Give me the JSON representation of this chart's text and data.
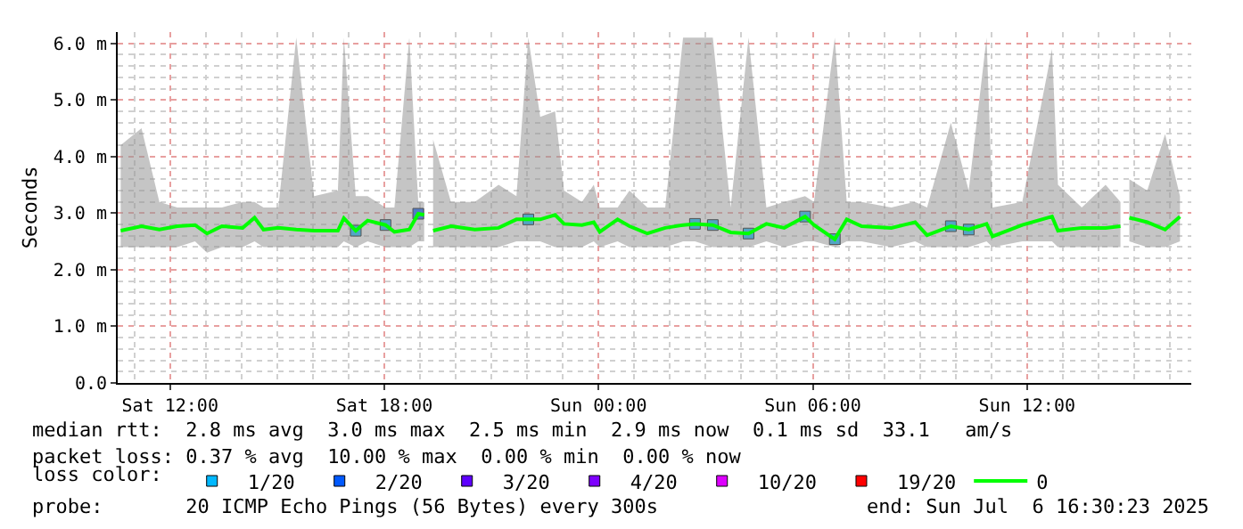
{
  "chart_data": {
    "type": "line",
    "ylabel": "Seconds",
    "legend_title": "loss color:",
    "legend": "bottom",
    "grid": true,
    "marker": "none",
    "line_style": "solid",
    "xlim": [
      "2025-07-05T10:32",
      "2025-07-06T16:36"
    ],
    "xticks": [
      {
        "value": "2025-07-05T12:00",
        "label": "Sat 12:00"
      },
      {
        "value": "2025-07-05T18:00",
        "label": "Sat 18:00"
      },
      {
        "value": "2025-07-06T00:00",
        "label": "Sun 00:00"
      },
      {
        "value": "2025-07-06T06:00",
        "label": "Sun 06:00"
      },
      {
        "value": "2025-07-06T12:00",
        "label": "Sun 12:00"
      }
    ],
    "ylim": [
      0,
      6.2
    ],
    "yticks": [
      {
        "value": 0,
        "label": "0.0"
      },
      {
        "value": 1,
        "label": "1.0 m"
      },
      {
        "value": 2,
        "label": "2.0 m"
      },
      {
        "value": 3,
        "label": "3.0 m"
      },
      {
        "value": 4,
        "label": "4.0 m"
      },
      {
        "value": 5,
        "label": "5.0 m"
      },
      {
        "value": 6,
        "label": "6.0 m"
      }
    ],
    "annotations": [
      "median rtt:  2.8 ms avg  3.0 ms max  2.5 ms min  2.9 ms now  0.1 ms sd  33.1   am/s",
      "packet loss: 0.37 % avg  10.00 % max  0.00 % min  0.00 % now",
      "probe:       20 ICMP Echo Pings (56 Bytes) every 300s",
      "end: Sun Jul  6 16:30:23 2025"
    ],
    "series": [
      {
        "name": "0",
        "color": "#00ff00",
        "x": [
          "2025-07-05T10:37",
          "2025-07-05T11:12",
          "2025-07-05T11:42",
          "2025-07-05T12:12",
          "2025-07-05T12:42",
          "2025-07-05T13:02",
          "2025-07-05T13:27",
          "2025-07-05T14:02",
          "2025-07-05T14:22",
          "2025-07-05T14:37",
          "2025-07-05T15:02",
          "2025-07-05T15:32",
          "2025-07-05T16:02",
          "2025-07-05T16:42",
          "2025-07-05T16:52",
          "2025-07-05T17:12",
          "2025-07-05T17:32",
          "2025-07-05T18:02",
          "2025-07-05T18:17",
          "2025-07-05T18:42",
          "2025-07-05T18:57",
          "2025-07-05T19:07",
          "2025-07-05T19:15",
          "2025-07-05T19:22",
          "2025-07-05T19:52",
          "2025-07-05T20:32",
          "2025-07-05T21:12",
          "2025-07-05T21:42",
          "2025-07-05T22:02",
          "2025-07-05T22:22",
          "2025-07-05T22:47",
          "2025-07-05T23:02",
          "2025-07-05T23:32",
          "2025-07-05T23:52",
          "2025-07-06T00:02",
          "2025-07-06T00:32",
          "2025-07-06T00:52",
          "2025-07-06T01:22",
          "2025-07-06T01:52",
          "2025-07-06T02:22",
          "2025-07-06T02:42",
          "2025-07-06T03:12",
          "2025-07-06T03:42",
          "2025-07-06T04:12",
          "2025-07-06T04:42",
          "2025-07-06T05:12",
          "2025-07-06T05:47",
          "2025-07-06T06:02",
          "2025-07-06T06:37",
          "2025-07-06T06:57",
          "2025-07-06T07:22",
          "2025-07-06T08:12",
          "2025-07-06T08:52",
          "2025-07-06T09:12",
          "2025-07-06T09:52",
          "2025-07-06T10:22",
          "2025-07-06T10:52",
          "2025-07-06T11:02",
          "2025-07-06T11:52",
          "2025-07-06T12:42",
          "2025-07-06T12:52",
          "2025-07-06T13:32",
          "2025-07-06T14:12",
          "2025-07-06T14:37",
          "2025-07-06T14:45",
          "2025-07-06T14:52",
          "2025-07-06T15:22",
          "2025-07-06T15:52",
          "2025-07-06T16:17"
        ],
        "values": [
          2.69,
          2.77,
          2.71,
          2.77,
          2.79,
          2.64,
          2.77,
          2.74,
          2.92,
          2.71,
          2.74,
          2.71,
          2.69,
          2.69,
          2.91,
          2.69,
          2.87,
          2.79,
          2.67,
          2.71,
          2.99,
          2.97,
          null,
          2.69,
          2.77,
          2.71,
          2.74,
          2.89,
          2.89,
          2.89,
          2.97,
          2.81,
          2.79,
          2.84,
          2.67,
          2.89,
          2.77,
          2.64,
          2.74,
          2.79,
          2.81,
          2.79,
          2.66,
          2.64,
          2.81,
          2.74,
          2.94,
          2.79,
          2.54,
          2.89,
          2.77,
          2.74,
          2.84,
          2.61,
          2.77,
          2.71,
          2.81,
          2.59,
          2.79,
          2.94,
          2.69,
          2.74,
          2.74,
          2.77,
          null,
          2.92,
          2.84,
          2.71,
          2.94
        ],
        "lower": [
          2.4,
          2.4,
          2.4,
          2.4,
          2.5,
          2.3,
          2.4,
          2.4,
          2.5,
          2.4,
          2.4,
          2.4,
          2.4,
          2.4,
          2.5,
          2.4,
          2.5,
          2.4,
          2.4,
          2.4,
          2.5,
          2.5,
          null,
          2.4,
          2.4,
          2.4,
          2.4,
          2.5,
          2.5,
          2.5,
          2.4,
          2.4,
          2.4,
          2.5,
          2.4,
          2.5,
          2.4,
          2.4,
          2.4,
          2.5,
          2.5,
          2.4,
          2.4,
          2.4,
          2.5,
          2.4,
          2.5,
          2.5,
          2.4,
          2.5,
          2.5,
          2.4,
          2.5,
          2.4,
          2.4,
          2.4,
          2.5,
          2.4,
          2.5,
          2.5,
          2.4,
          2.4,
          2.4,
          2.4,
          null,
          2.5,
          2.4,
          2.4,
          2.5
        ],
        "upper": [
          4.2,
          4.5,
          3.2,
          3.1,
          3.1,
          3.1,
          3.1,
          3.2,
          3.2,
          3.1,
          3.1,
          6.1,
          3.3,
          3.4,
          6.1,
          3.3,
          3.3,
          3.1,
          3.1,
          6.1,
          3.2,
          3.2,
          null,
          4.3,
          3.2,
          3.2,
          3.5,
          3.3,
          6.1,
          4.7,
          4.8,
          3.4,
          3.2,
          3.5,
          3.1,
          3.1,
          3.4,
          3.1,
          3.1,
          6.1,
          6.1,
          6.1,
          3.1,
          6.1,
          3.1,
          3.2,
          3.3,
          3.2,
          6.1,
          3.2,
          3.2,
          3.1,
          3.2,
          3.1,
          4.6,
          3.4,
          6.1,
          3.1,
          3.2,
          5.9,
          3.5,
          3.1,
          3.5,
          3.2,
          null,
          3.6,
          3.4,
          4.4,
          3.3
        ]
      },
      {
        "name": "1/20",
        "color": "#00b8ff",
        "type": "scatter",
        "marker": "square",
        "x": [
          "2025-07-05T17:12",
          "2025-07-05T18:02",
          "2025-07-05T22:02",
          "2025-07-06T02:42",
          "2025-07-06T03:12",
          "2025-07-06T04:12",
          "2025-07-06T05:47",
          "2025-07-06T06:37",
          "2025-07-06T09:52",
          "2025-07-06T10:22"
        ],
        "values": [
          2.69,
          2.79,
          2.89,
          2.81,
          2.79,
          2.64,
          2.94,
          2.54,
          2.77,
          2.71
        ]
      },
      {
        "name": "2/20",
        "color": "#0059ff",
        "type": "scatter",
        "marker": "square",
        "x": [
          "2025-07-05T18:57"
        ],
        "values": [
          2.99
        ]
      },
      {
        "name": "3/20",
        "color": "#5e00ff",
        "type": "scatter",
        "marker": "square"
      },
      {
        "name": "4/20",
        "color": "#7e00ff",
        "type": "scatter",
        "marker": "square"
      },
      {
        "name": "10/20",
        "color": "#dd00ff",
        "type": "scatter",
        "marker": "square"
      },
      {
        "name": "19/20",
        "color": "#ff0000",
        "type": "scatter",
        "marker": "square"
      }
    ]
  }
}
